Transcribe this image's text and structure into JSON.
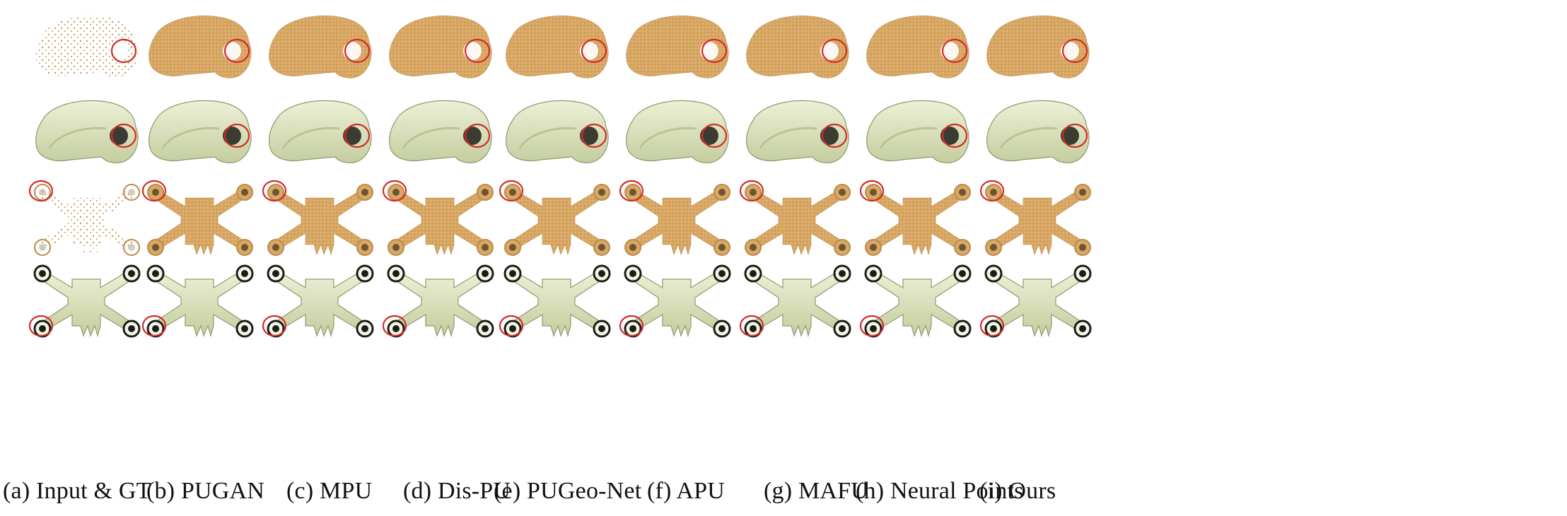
{
  "figure": {
    "columns": [
      {
        "id": "a",
        "label": "(a) Input & GT"
      },
      {
        "id": "b",
        "label": "(b) PUGAN"
      },
      {
        "id": "c",
        "label": "(c) MPU"
      },
      {
        "id": "d",
        "label": "(d) Dis-PU"
      },
      {
        "id": "e",
        "label": "(e) PUGeo-Net"
      },
      {
        "id": "f",
        "label": "(f) APU"
      },
      {
        "id": "g",
        "label": "(g) MAFU"
      },
      {
        "id": "h",
        "label": "(h) Neural Points"
      },
      {
        "id": "i",
        "label": "(i) Ours"
      }
    ],
    "colors": {
      "point_cloud": "#d9a865",
      "point_cloud_dark": "#b98a4a",
      "mesh": "#dfe6c0",
      "mesh_shade": "#b9c395",
      "mesh_edge": "#8f9a6c",
      "highlight_circle": "#d42a2a"
    }
  }
}
